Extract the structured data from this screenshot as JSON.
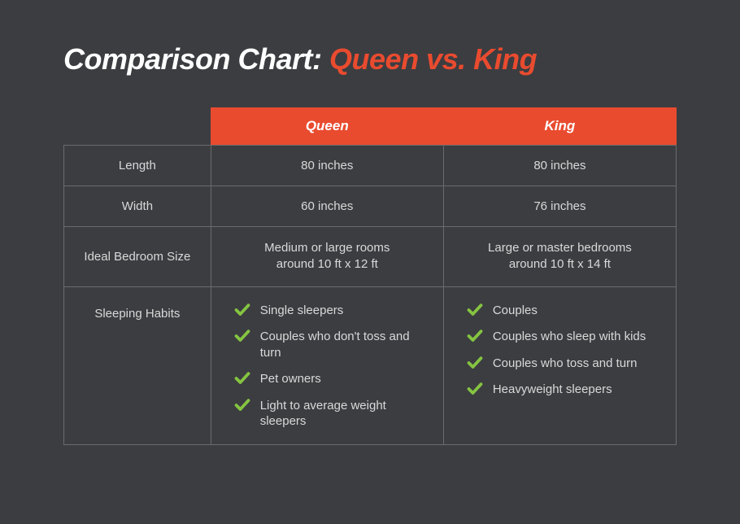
{
  "colors": {
    "background": "#3c3d41",
    "accent": "#e94b2f",
    "text_title": "#ffffff",
    "text_body": "#d9d9d9",
    "border": "#6a6b6e",
    "check_green": "#85c441"
  },
  "title": {
    "prefix": "Comparison Chart: ",
    "highlight": "Queen vs. King"
  },
  "columns": {
    "a": "Queen",
    "b": "King"
  },
  "rows": {
    "length": {
      "label": "Length",
      "a": "80 inches",
      "b": "80 inches"
    },
    "width": {
      "label": "Width",
      "a": "60 inches",
      "b": "76 inches"
    },
    "bedroom": {
      "label": "Ideal Bedroom Size",
      "a_line1": "Medium or large rooms",
      "a_line2": "around 10 ft x 12 ft",
      "b_line1": "Large or master bedrooms",
      "b_line2": "around 10 ft x 14 ft"
    },
    "habits": {
      "label": "Sleeping Habits",
      "a": [
        "Single sleepers",
        "Couples who don't toss and turn",
        "Pet owners",
        "Light to average weight sleepers"
      ],
      "b": [
        "Couples",
        "Couples who sleep with kids",
        "Couples who toss and turn",
        "Heavyweight sleepers"
      ]
    }
  }
}
